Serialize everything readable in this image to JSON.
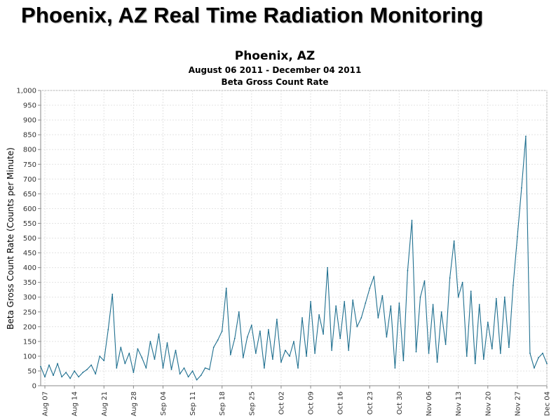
{
  "page": {
    "heading": "Phoenix, AZ Real Time Radiation Monitoring"
  },
  "chart_data": {
    "type": "line",
    "title": "Phoenix, AZ",
    "subtitle": "August 06 2011 - December 04 2011",
    "subtitle2": "Beta Gross Count Rate",
    "xlabel": "",
    "ylabel": "Beta Gross Count Rate (Counts per Minute)",
    "ylim": [
      0,
      1000
    ],
    "yticks": [
      0,
      50,
      100,
      150,
      200,
      250,
      300,
      350,
      400,
      450,
      500,
      550,
      600,
      650,
      700,
      750,
      800,
      850,
      900,
      950,
      1000
    ],
    "ytick_labels": [
      "0",
      "50",
      "100",
      "150",
      "200",
      "250",
      "300",
      "350",
      "400",
      "450",
      "500",
      "550",
      "600",
      "650",
      "700",
      "750",
      "800",
      "850",
      "900",
      "950",
      "1,000"
    ],
    "xlim": [
      "2011-08-06",
      "2011-12-04"
    ],
    "xticks": [
      "Aug 07",
      "Aug 14",
      "Aug 21",
      "Aug 28",
      "Sep 04",
      "Sep 11",
      "Sep 18",
      "Sep 25",
      "Oct 02",
      "Oct 09",
      "Oct 16",
      "Oct 23",
      "Oct 30",
      "Nov 06",
      "Nov 13",
      "Nov 20",
      "Nov 27",
      "Dec 04"
    ],
    "grid": true,
    "line_color": "#1f6f8f",
    "series": [
      {
        "x": [
          "2011-08-06",
          "2011-08-07",
          "2011-08-08",
          "2011-08-09",
          "2011-08-10",
          "2011-08-11",
          "2011-08-12",
          "2011-08-13",
          "2011-08-14",
          "2011-08-15",
          "2011-08-16",
          "2011-08-17",
          "2011-08-18",
          "2011-08-19",
          "2011-08-20",
          "2011-08-21",
          "2011-08-22",
          "2011-08-23",
          "2011-08-24",
          "2011-08-25",
          "2011-08-26",
          "2011-08-27",
          "2011-08-28",
          "2011-08-29",
          "2011-08-30",
          "2011-08-31",
          "2011-09-01",
          "2011-09-02",
          "2011-09-03",
          "2011-09-04",
          "2011-09-05",
          "2011-09-06",
          "2011-09-07",
          "2011-09-08",
          "2011-09-09",
          "2011-09-10",
          "2011-09-11",
          "2011-09-12",
          "2011-09-13",
          "2011-09-14",
          "2011-09-15",
          "2011-09-16",
          "2011-09-17",
          "2011-09-18",
          "2011-09-19",
          "2011-09-20",
          "2011-09-21",
          "2011-09-22",
          "2011-09-23",
          "2011-09-24",
          "2011-09-25",
          "2011-09-26",
          "2011-09-27",
          "2011-09-28",
          "2011-09-29",
          "2011-09-30",
          "2011-10-01",
          "2011-10-02",
          "2011-10-03",
          "2011-10-04",
          "2011-10-05",
          "2011-10-06",
          "2011-10-07",
          "2011-10-08",
          "2011-10-09",
          "2011-10-10",
          "2011-10-11",
          "2011-10-12",
          "2011-10-13",
          "2011-10-14",
          "2011-10-15",
          "2011-10-16",
          "2011-10-17",
          "2011-10-18",
          "2011-10-19",
          "2011-10-20",
          "2011-10-21",
          "2011-10-22",
          "2011-10-23",
          "2011-10-24",
          "2011-10-25",
          "2011-10-26",
          "2011-10-27",
          "2011-10-28",
          "2011-10-29",
          "2011-10-30",
          "2011-10-31",
          "2011-11-01",
          "2011-11-02",
          "2011-11-03",
          "2011-11-04",
          "2011-11-05",
          "2011-11-06",
          "2011-11-07",
          "2011-11-08",
          "2011-11-09",
          "2011-11-10",
          "2011-11-11",
          "2011-11-12",
          "2011-11-13",
          "2011-11-14",
          "2011-11-15",
          "2011-11-16",
          "2011-11-17",
          "2011-11-18",
          "2011-11-19",
          "2011-11-20",
          "2011-11-21",
          "2011-11-22",
          "2011-11-23",
          "2011-11-24",
          "2011-11-25",
          "2011-11-26",
          "2011-11-27",
          "2011-11-28",
          "2011-11-29",
          "2011-11-30",
          "2011-12-01",
          "2011-12-02",
          "2011-12-03",
          "2011-12-04"
        ],
        "values": [
          65,
          30,
          70,
          35,
          75,
          30,
          45,
          25,
          50,
          30,
          45,
          55,
          70,
          40,
          100,
          85,
          190,
          310,
          60,
          130,
          75,
          110,
          45,
          125,
          95,
          60,
          150,
          90,
          175,
          60,
          145,
          55,
          120,
          40,
          60,
          30,
          50,
          20,
          35,
          60,
          55,
          130,
          155,
          185,
          330,
          105,
          160,
          250,
          95,
          165,
          205,
          110,
          185,
          60,
          190,
          90,
          225,
          80,
          120,
          100,
          150,
          60,
          230,
          100,
          285,
          110,
          240,
          175,
          400,
          120,
          270,
          160,
          285,
          120,
          290,
          200,
          230,
          280,
          330,
          370,
          230,
          305,
          165,
          270,
          60,
          280,
          85,
          390,
          560,
          115,
          300,
          355,
          110,
          275,
          80,
          250,
          140,
          365,
          490,
          300,
          350,
          100,
          320,
          75,
          275,
          90,
          215,
          125,
          295,
          110,
          300,
          130,
          340,
          505,
          670,
          845,
          110,
          60,
          95,
          110,
          75
        ]
      }
    ]
  }
}
